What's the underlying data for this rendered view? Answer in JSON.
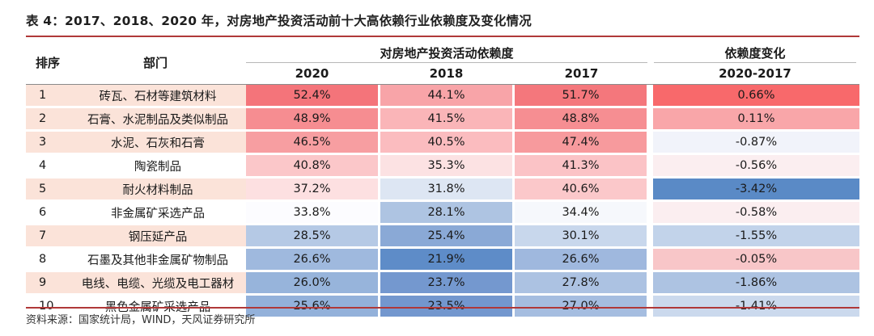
{
  "title": "表 4：2017、2018、2020 年，对房地产投资活动前十大高依赖行业依赖度及变化情况",
  "headers": {
    "rank": "排序",
    "sector": "部门",
    "dependency_group": "对房地产投资活动依赖度",
    "y2020": "2020",
    "y2018": "2018",
    "y2017": "2017",
    "change_top": "依赖度变化",
    "change_bottom": "2020-2017"
  },
  "rows": [
    {
      "rank": "1",
      "sector": "砖瓦、石材等建筑材料",
      "v2020": "52.4%",
      "v2018": "44.1%",
      "v2017": "51.7%",
      "change": "0.66%",
      "c_rank": "#fbe3d9",
      "c2020": "#f4747a",
      "c2018": "#f8a4a8",
      "c2017": "#f4777c",
      "c_change": "#f8696b"
    },
    {
      "rank": "2",
      "sector": "石膏、水泥制品及类似制品",
      "v2020": "48.9%",
      "v2018": "41.5%",
      "v2017": "48.8%",
      "change": "0.11%",
      "c_rank": "#fbe3d9",
      "c2020": "#f68d91",
      "c2018": "#fab5b8",
      "c2017": "#f68e92",
      "c_change": "#f9a6a9"
    },
    {
      "rank": "3",
      "sector": "水泥、石灰和石膏",
      "v2020": "46.5%",
      "v2018": "40.5%",
      "v2017": "47.4%",
      "change": "-0.87%",
      "c_rank": "#fbe3d9",
      "c2020": "#f79ea1",
      "c2018": "#fbbcbf",
      "c2017": "#f79a9d",
      "c_change": "#f1f3fa"
    },
    {
      "rank": "4",
      "sector": "陶瓷制品",
      "v2020": "40.8%",
      "v2018": "35.3%",
      "v2017": "41.3%",
      "change": "-0.56%",
      "c_rank": "#ffffff",
      "c2020": "#fbc7c9",
      "c2018": "#fce2e3",
      "c2017": "#fbc3c6",
      "c_change": "#fbeef0"
    },
    {
      "rank": "5",
      "sector": "耐火材料制品",
      "v2020": "37.2%",
      "v2018": "31.8%",
      "v2017": "40.6%",
      "change": "-3.42%",
      "c_rank": "#fbe3d9",
      "c2020": "#fde0e1",
      "c2018": "#dde6f3",
      "c2017": "#fbc8ca",
      "c_change": "#5a8ac6"
    },
    {
      "rank": "6",
      "sector": "非金属矿采选产品",
      "v2020": "33.8%",
      "v2018": "28.1%",
      "v2017": "34.4%",
      "change": "-0.58%",
      "c_rank": "#ffffff",
      "c2020": "#fcfcff",
      "c2018": "#aec4e2",
      "c2017": "#f6f8fc",
      "c_change": "#fbeef0"
    },
    {
      "rank": "7",
      "sector": "钢压延产品",
      "v2020": "28.5%",
      "v2018": "25.4%",
      "v2017": "30.1%",
      "change": "-1.55%",
      "c_rank": "#fbe3d9",
      "c2020": "#b5c9e5",
      "c2018": "#8aa9d6",
      "c2017": "#c8d7ec",
      "c_change": "#c2d3ea"
    },
    {
      "rank": "8",
      "sector": "石墨及其他非金属矿物制品",
      "v2020": "26.6%",
      "v2018": "21.9%",
      "v2017": "26.6%",
      "change": "-0.05%",
      "c_rank": "#ffffff",
      "c2020": "#9fb9de",
      "c2018": "#5e8cc8",
      "c2017": "#9fb8de",
      "c_change": "#f8c6c8"
    },
    {
      "rank": "9",
      "sector": "电线、电缆、光缆及电工器材",
      "v2020": "26.0%",
      "v2018": "23.7%",
      "v2017": "27.8%",
      "change": "-1.86%",
      "c_rank": "#fbe3d9",
      "c2020": "#97b4db",
      "c2018": "#7498cf",
      "c2017": "#acc2e2",
      "c_change": "#adc3e2"
    },
    {
      "rank": "10",
      "sector": "黑色金属矿采选产品",
      "v2020": "25.6%",
      "v2018": "23.5%",
      "v2017": "27.0%",
      "change": "-1.41%",
      "c_rank": "#ffffff",
      "c2020": "#93b1da",
      "c2018": "#7397ce",
      "c2017": "#a5bde0",
      "c_change": "#cbd9ed"
    }
  ],
  "source": "资料来源：国家统计局，WIND，天风证券研究所"
}
